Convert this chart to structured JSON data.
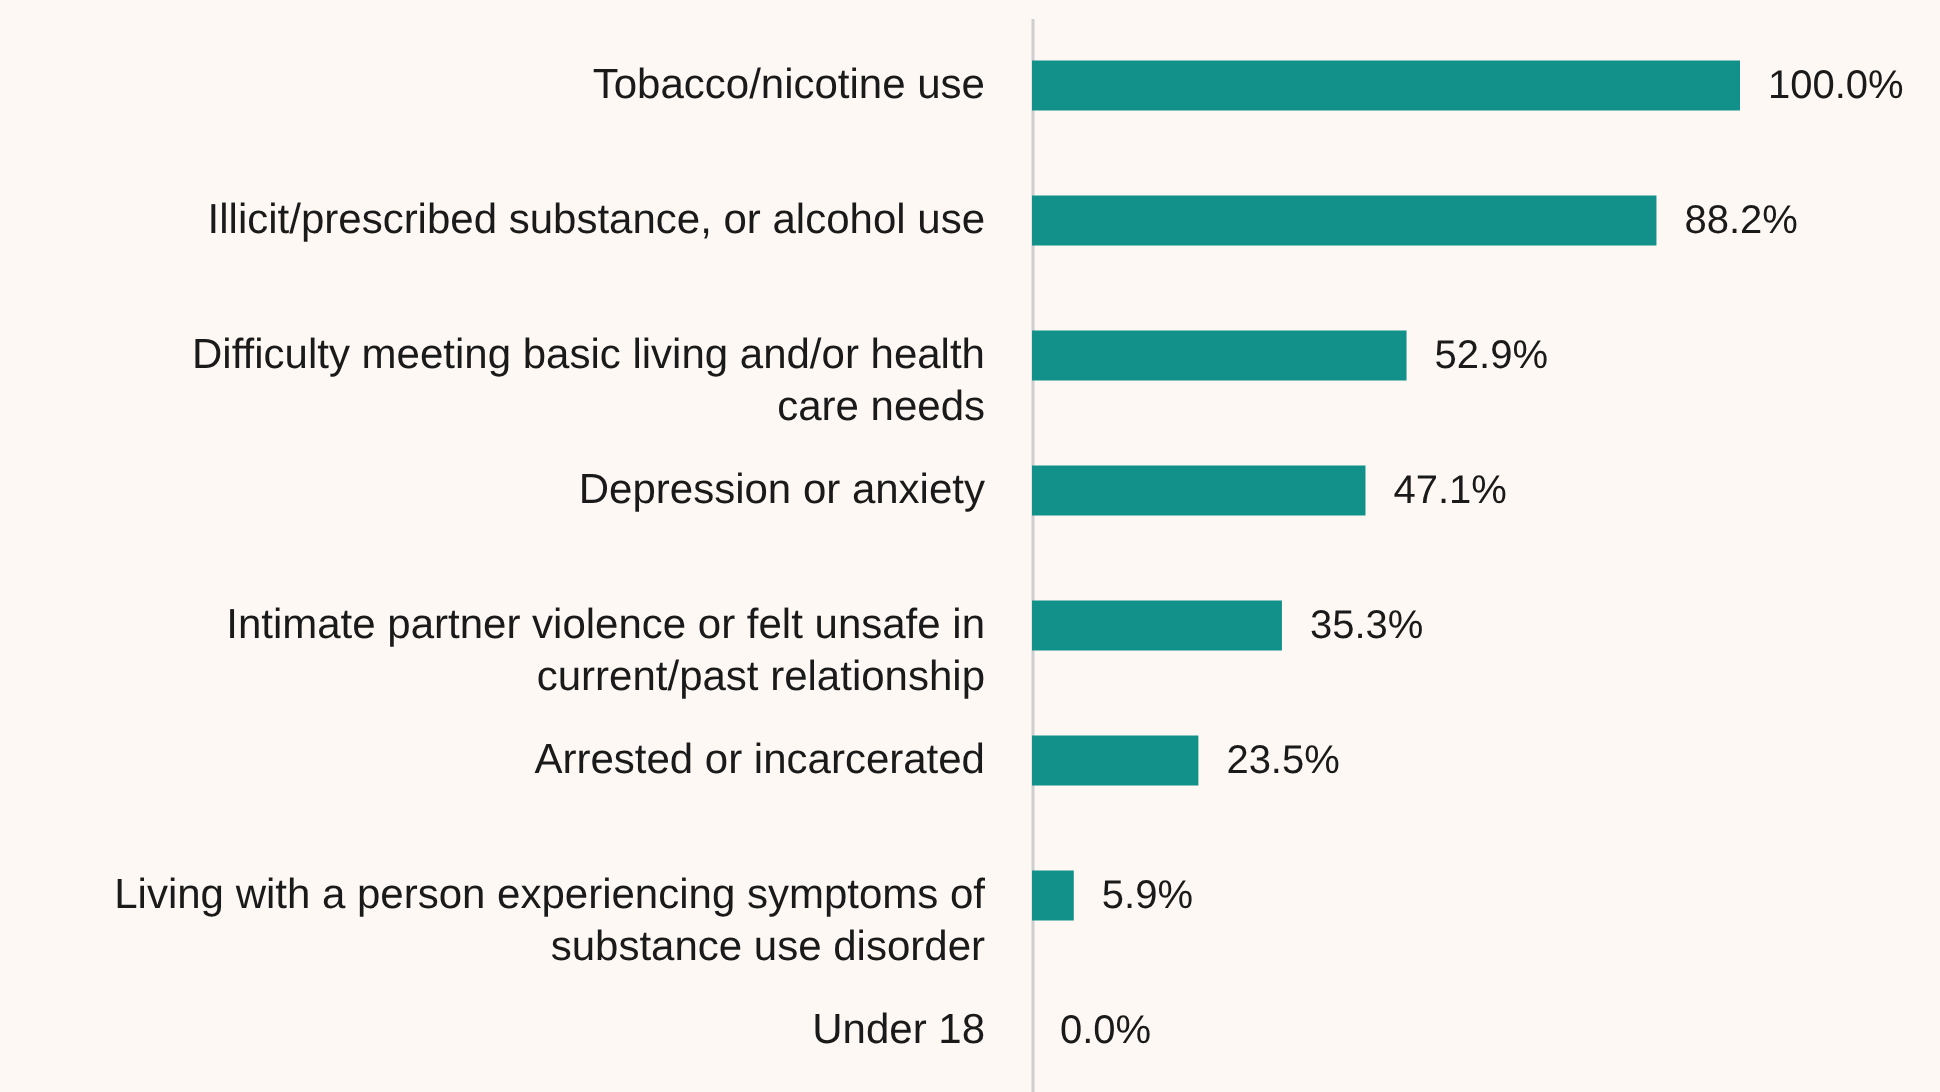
{
  "chart_data": {
    "type": "bar",
    "orientation": "horizontal",
    "categories": [
      "Tobacco/nicotine use",
      "Illicit/prescribed substance, or alcohol use",
      "Difficulty meeting basic living and/or health care needs",
      "Depression or anxiety",
      "Intimate partner violence or felt unsafe in current/past relationship",
      "Arrested or incarcerated",
      "Living with a person experiencing symptoms of substance use disorder",
      "Under 18"
    ],
    "values": [
      100.0,
      88.2,
      52.9,
      47.1,
      35.3,
      23.5,
      5.9,
      0.0
    ],
    "value_labels": [
      "100.0%",
      "88.2%",
      "52.9%",
      "47.1%",
      "35.3%",
      "23.5%",
      "5.9%",
      "0.0%"
    ],
    "color": "#11918a"
  }
}
